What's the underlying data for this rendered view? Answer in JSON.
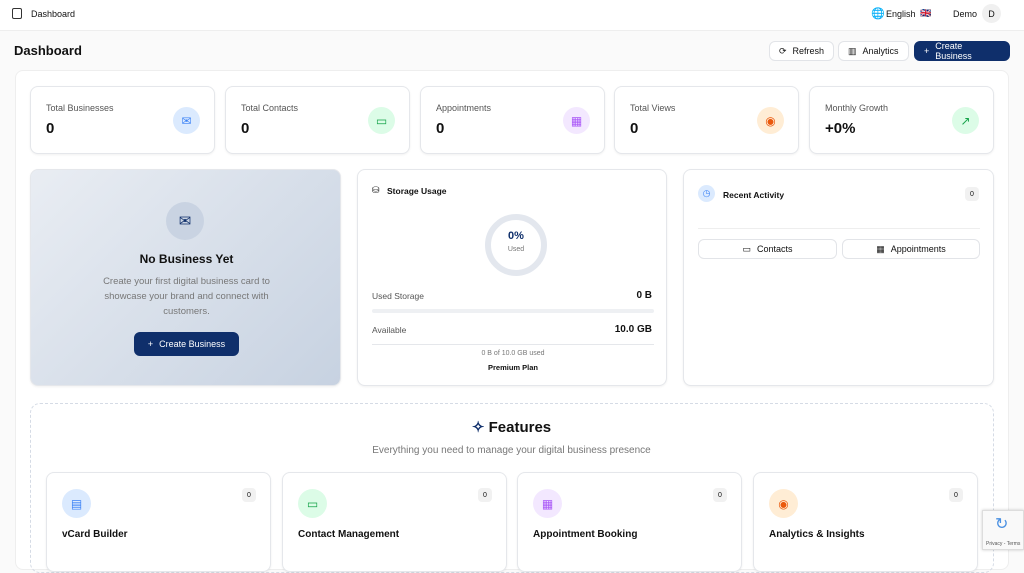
{
  "topbar": {
    "breadcrumb": "Dashboard",
    "language": "English",
    "flag": "🇬🇧",
    "user": "Demo",
    "avatar": "D"
  },
  "header": {
    "title": "Dashboard",
    "refresh": "Refresh",
    "analytics": "Analytics",
    "create": "Create Business"
  },
  "stats": [
    {
      "label": "Total Businesses",
      "value": "0",
      "icon": "mail-icon",
      "color": "#3b82f6",
      "bg": "#dbeafe"
    },
    {
      "label": "Total Contacts",
      "value": "0",
      "icon": "message-icon",
      "color": "#16a34a",
      "bg": "#dcfce7"
    },
    {
      "label": "Appointments",
      "value": "0",
      "icon": "calendar-icon",
      "color": "#a855f7",
      "bg": "#f3e8ff"
    },
    {
      "label": "Total Views",
      "value": "0",
      "icon": "eye-icon",
      "color": "#ea580c",
      "bg": "#ffedd5"
    },
    {
      "label": "Monthly Growth",
      "value": "+0%",
      "icon": "trending-up-icon",
      "color": "#16a34a",
      "bg": "#dcfce7"
    }
  ],
  "empty": {
    "title": "No Business Yet",
    "text": "Create your first digital business card to showcase your brand and connect with customers.",
    "button": "Create Business"
  },
  "storage": {
    "title": "Storage Usage",
    "percent": "0%",
    "used_label": "Used",
    "used_storage_label": "Used Storage",
    "used_storage": "0 B",
    "available_label": "Available",
    "available": "10.0 GB",
    "summary": "0 B of 10.0 GB used",
    "plan": "Premium Plan",
    "progress": 0
  },
  "activity": {
    "title": "Recent Activity",
    "count": "0",
    "tab_contacts": "Contacts",
    "tab_appointments": "Appointments"
  },
  "features": {
    "title": "Features",
    "subtitle": "Everything you need to manage your digital business presence",
    "items": [
      {
        "title": "vCard Builder",
        "count": "0",
        "icon": "building-icon",
        "color": "#3b82f6",
        "bg": "#dbeafe"
      },
      {
        "title": "Contact Management",
        "count": "0",
        "icon": "message-icon",
        "color": "#16a34a",
        "bg": "#dcfce7"
      },
      {
        "title": "Appointment Booking",
        "count": "0",
        "icon": "calendar-icon",
        "color": "#a855f7",
        "bg": "#f3e8ff"
      },
      {
        "title": "Analytics & Insights",
        "count": "0",
        "icon": "eye-icon",
        "color": "#ea580c",
        "bg": "#ffedd5"
      }
    ]
  },
  "recaptcha": {
    "text": "Privacy - Terms"
  }
}
